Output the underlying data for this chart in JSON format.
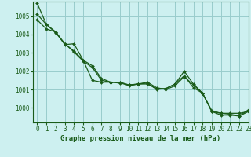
{
  "title": "Graphe pression niveau de la mer (hPa)",
  "background_color": "#cdf0f0",
  "grid_color": "#99cccc",
  "line_color": "#1a5c1a",
  "marker_color": "#1a5c1a",
  "xlim": [
    -0.5,
    23
  ],
  "ylim": [
    999.2,
    1005.8
  ],
  "yticks": [
    1000,
    1001,
    1002,
    1003,
    1004,
    1005
  ],
  "xticks": [
    0,
    1,
    2,
    3,
    4,
    5,
    6,
    7,
    8,
    9,
    10,
    11,
    12,
    13,
    14,
    15,
    16,
    17,
    18,
    19,
    20,
    21,
    22,
    23
  ],
  "series1": [
    1005.7,
    1004.55,
    1004.1,
    1003.5,
    1003.05,
    1002.55,
    1002.2,
    1001.5,
    1001.4,
    1001.4,
    1001.25,
    1001.3,
    1001.4,
    1001.1,
    1001.0,
    1001.2,
    1001.7,
    1001.25,
    1000.8,
    999.8,
    999.7,
    999.7,
    999.7,
    999.8
  ],
  "series2": [
    1005.1,
    1004.55,
    1004.15,
    1003.5,
    1003.1,
    1002.6,
    1002.3,
    1001.6,
    1001.4,
    1001.4,
    1001.2,
    1001.3,
    1001.35,
    1001.0,
    1001.05,
    1001.3,
    1002.0,
    1001.3,
    1000.8,
    999.85,
    999.7,
    999.65,
    999.55,
    999.8
  ],
  "series3": [
    1004.8,
    1004.3,
    1004.15,
    1003.45,
    1003.5,
    1002.6,
    1001.5,
    1001.4,
    1001.4,
    1001.35,
    1001.25,
    1001.3,
    1001.3,
    1001.05,
    1001.05,
    1001.3,
    1001.75,
    1001.1,
    1000.8,
    999.8,
    999.6,
    999.6,
    999.55,
    999.9
  ],
  "xlabel_fontsize": 6.5,
  "tick_fontsize": 5.5
}
